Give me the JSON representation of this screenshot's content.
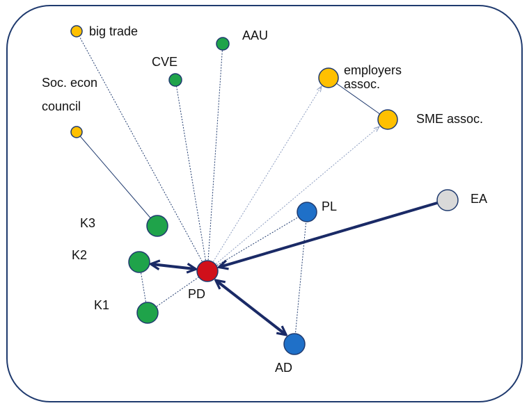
{
  "nodes": [
    {
      "label": [
        "big trade"
      ]
    },
    {
      "label": [
        "AAU"
      ]
    },
    {
      "label": [
        "CVE"
      ]
    },
    {
      "label": [
        "Soc. econ",
        "council"
      ]
    },
    {
      "label": [
        "employers",
        "assoc."
      ]
    },
    {
      "label": [
        "SME assoc."
      ]
    },
    {
      "label": [
        "EA"
      ]
    },
    {
      "label": [
        "PL"
      ]
    },
    {
      "label": [
        "K3"
      ]
    },
    {
      "label": [
        "K2"
      ]
    },
    {
      "label": [
        "PD"
      ]
    },
    {
      "label": [
        "K1"
      ]
    },
    {
      "label": [
        "AD"
      ]
    }
  ]
}
